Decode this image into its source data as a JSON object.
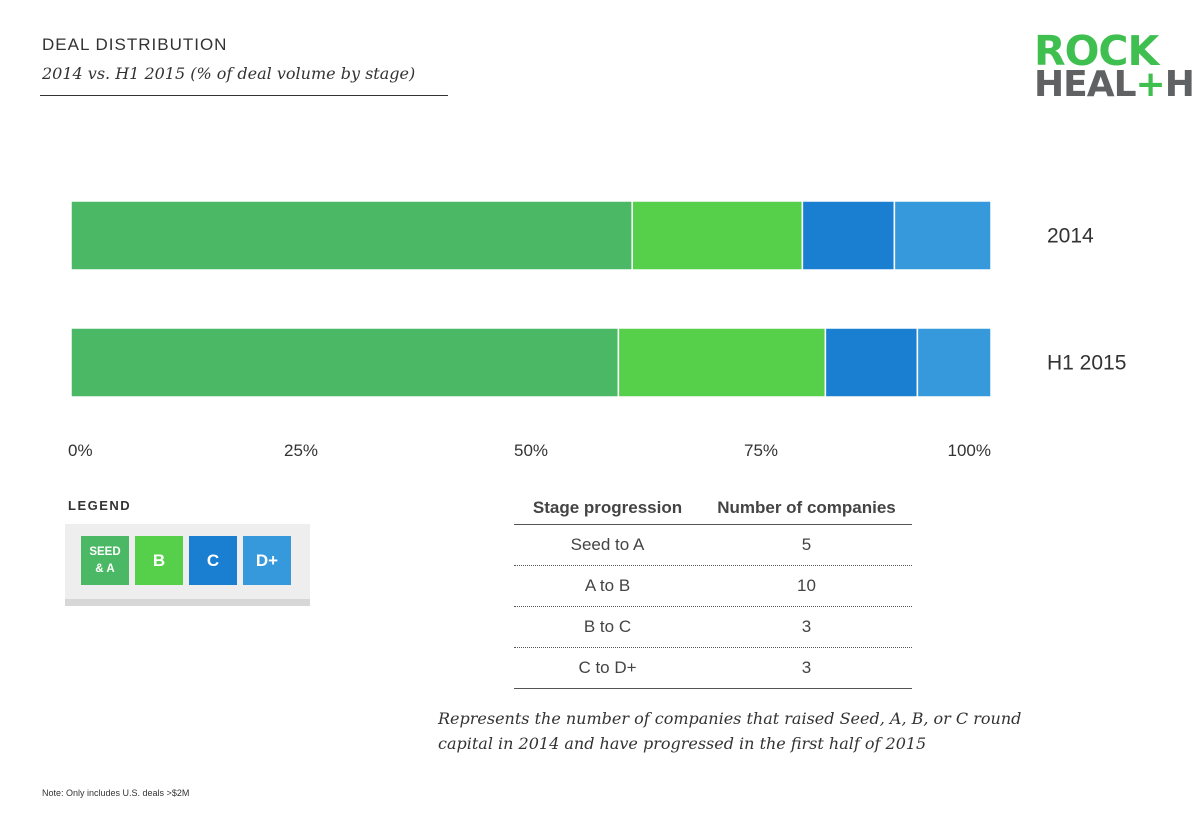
{
  "header": {
    "title": "DEAL DISTRIBUTION",
    "subtitle": "2014 vs. H1 2015 (% of deal volume by stage)"
  },
  "logo": {
    "line1": "ROCK",
    "line2_a": "HEAL",
    "line2_plus": "+",
    "line2_b": "H"
  },
  "colors": {
    "seed_a": "#4ab864",
    "b": "#56cf4b",
    "c": "#1a7fd1",
    "d_plus": "#3699dc"
  },
  "chart_data": {
    "type": "bar",
    "orientation": "horizontal",
    "stacked": true,
    "categories": [
      "2014",
      "H1 2015"
    ],
    "series": [
      {
        "name": "SEED & A",
        "values": [
          61,
          59.5
        ]
      },
      {
        "name": "B",
        "values": [
          18.5,
          22.5
        ]
      },
      {
        "name": "C",
        "values": [
          10,
          10
        ]
      },
      {
        "name": "D+",
        "values": [
          10.5,
          8
        ]
      }
    ],
    "xlim": [
      0,
      100
    ],
    "xticks": [
      "0%",
      "25%",
      "50%",
      "75%",
      "100%"
    ],
    "legend_placement": "bottom-left"
  },
  "legend": {
    "title": "LEGEND",
    "items": [
      {
        "label_line1": "SEED",
        "label_line2": "& A",
        "color": "#4ab864"
      },
      {
        "label": "B",
        "color": "#56cf4b"
      },
      {
        "label": "C",
        "color": "#1a7fd1"
      },
      {
        "label": "D+",
        "color": "#3699dc"
      }
    ]
  },
  "table": {
    "headers": [
      "Stage progression",
      "Number of companies"
    ],
    "rows": [
      [
        "Seed to A",
        "5"
      ],
      [
        "A to B",
        "10"
      ],
      [
        "B to C",
        "3"
      ],
      [
        "C to D+",
        "3"
      ]
    ]
  },
  "caption": "Represents the number of companies that raised Seed, A, B, or C round capital in 2014 and have progressed in the first half of 2015",
  "note": "Note: Only includes U.S. deals >$2M"
}
